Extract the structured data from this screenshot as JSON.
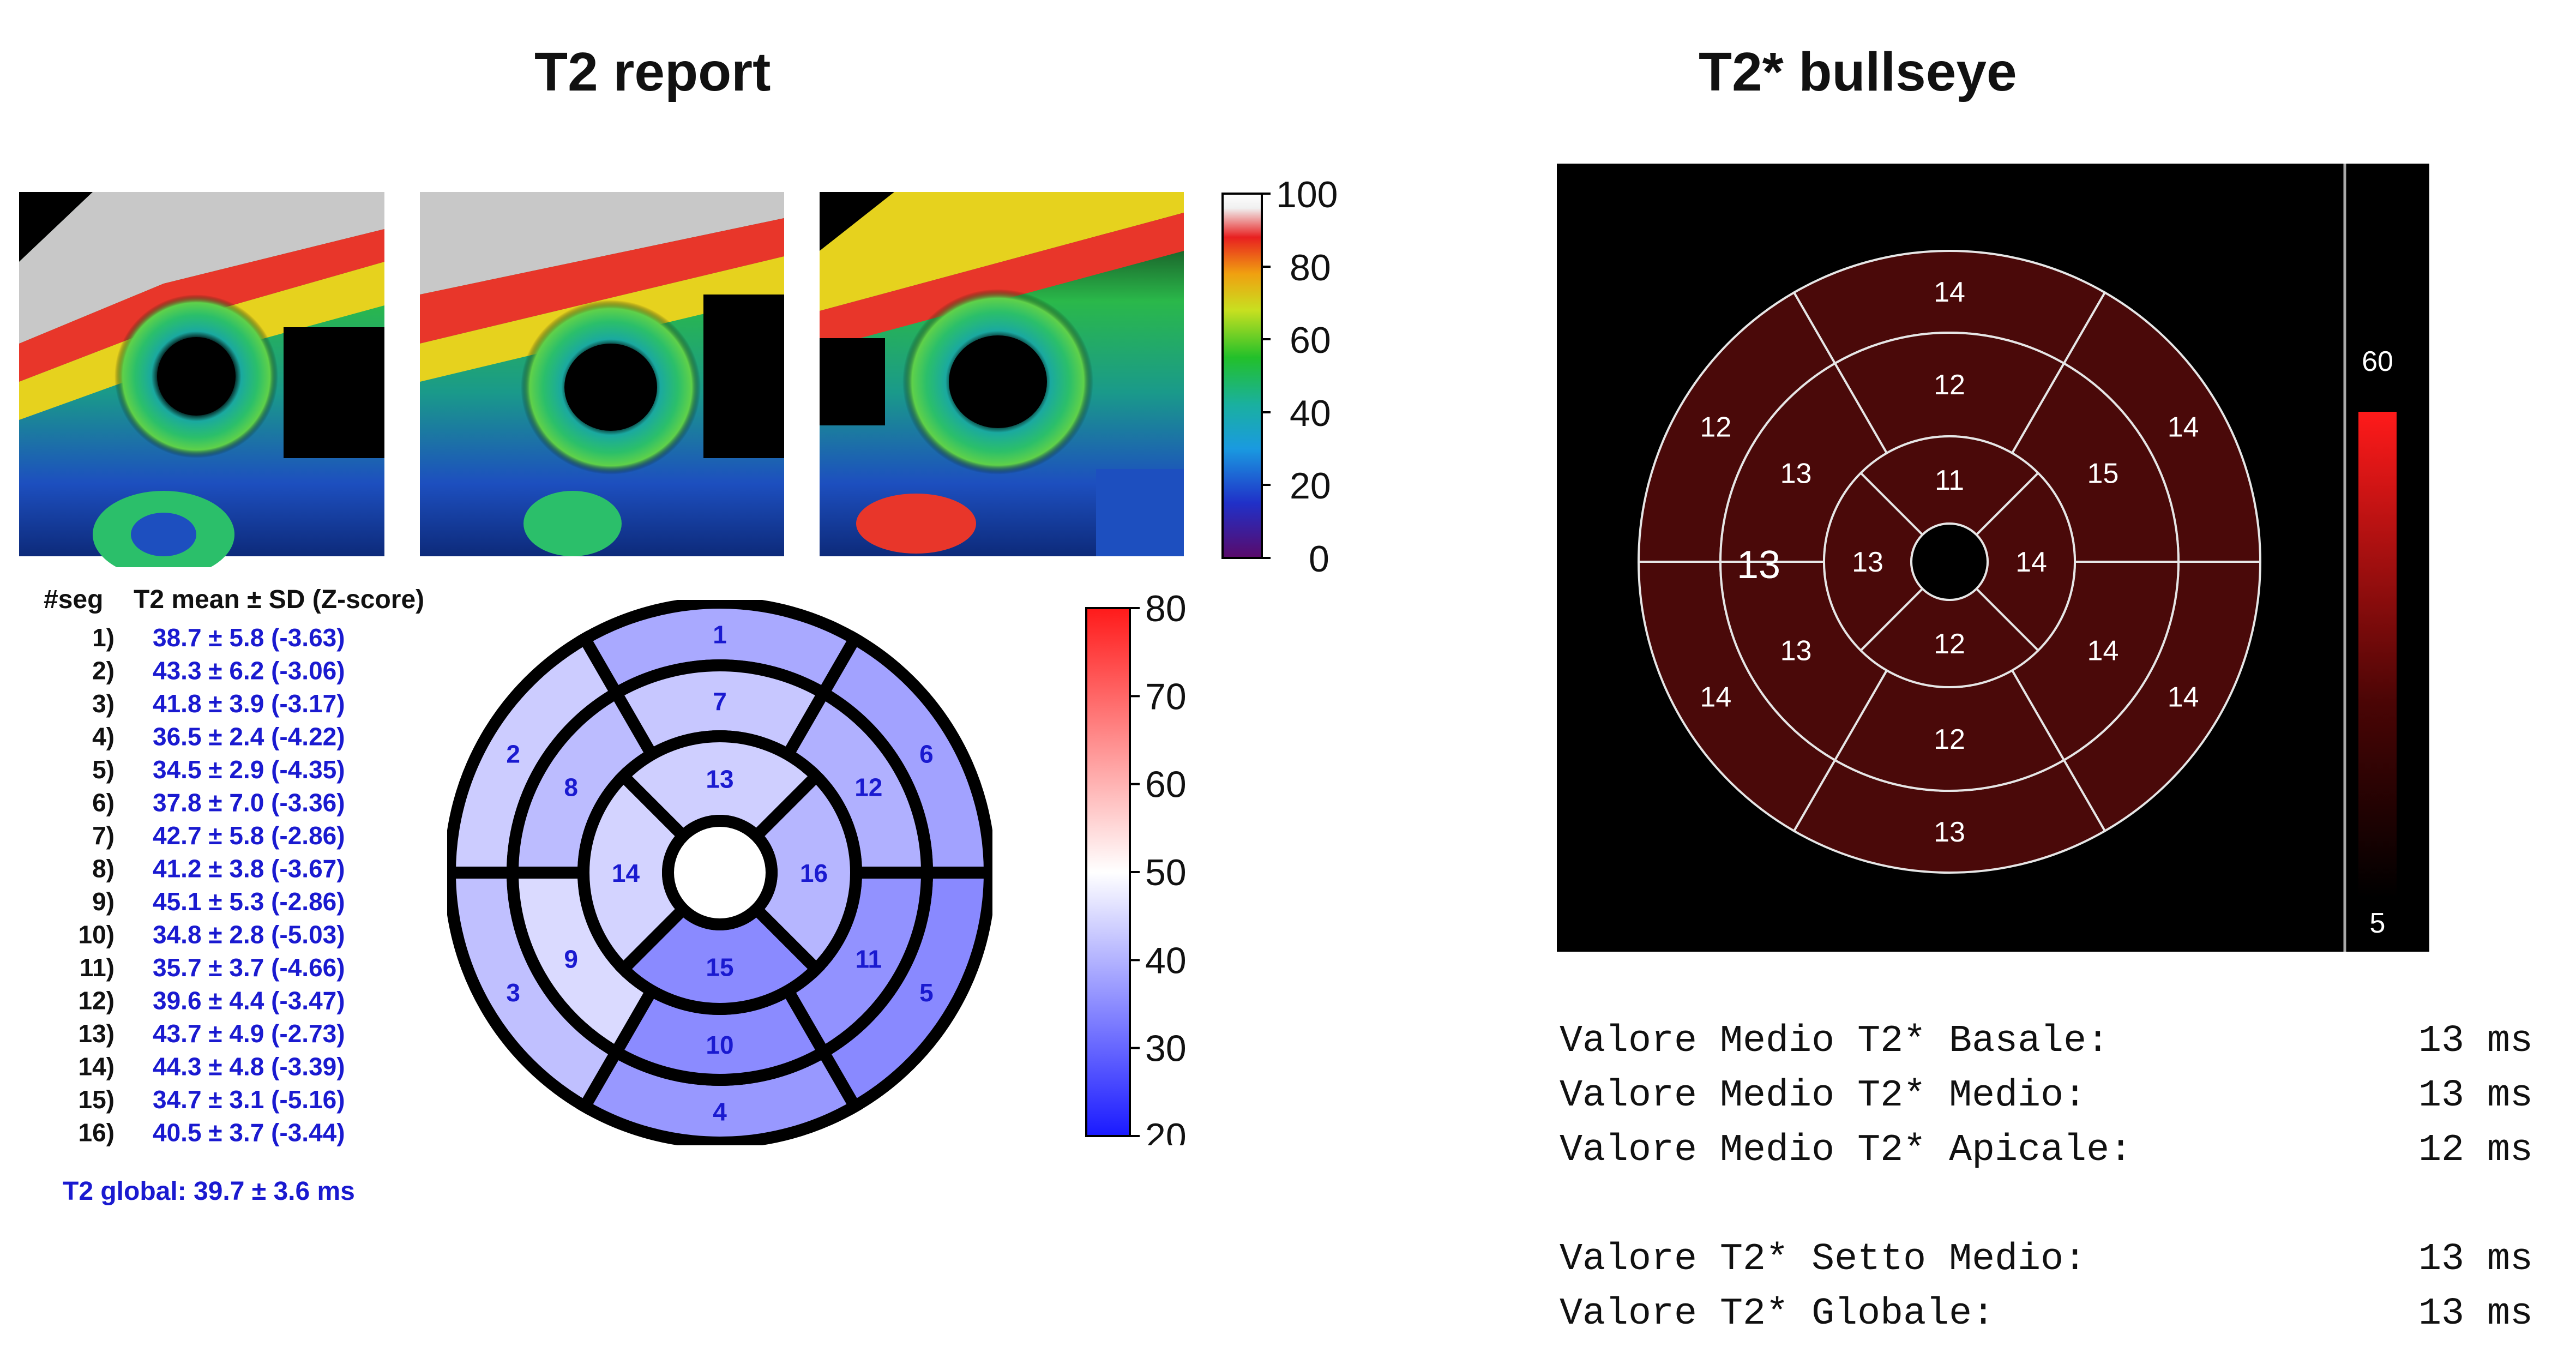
{
  "left": {
    "title": "T2 report",
    "map_colorbar": {
      "ticks": [
        "100",
        "80",
        "60",
        "40",
        "20",
        "0"
      ]
    },
    "table": {
      "header_seg": "#seg",
      "header_val": "T2 mean ± SD (Z-score)",
      "rows": [
        {
          "seg": "1)",
          "val": "38.7 ± 5.8 (-3.63)"
        },
        {
          "seg": "2)",
          "val": "43.3 ± 6.2 (-3.06)"
        },
        {
          "seg": "3)",
          "val": "41.8 ± 3.9 (-3.17)"
        },
        {
          "seg": "4)",
          "val": "36.5 ± 2.4 (-4.22)"
        },
        {
          "seg": "5)",
          "val": "34.5 ± 2.9 (-4.35)"
        },
        {
          "seg": "6)",
          "val": "37.8 ± 7.0 (-3.36)"
        },
        {
          "seg": "7)",
          "val": "42.7 ± 5.8 (-2.86)"
        },
        {
          "seg": "8)",
          "val": "41.2 ± 3.8 (-3.67)"
        },
        {
          "seg": "9)",
          "val": "45.1 ± 5.3 (-2.86)"
        },
        {
          "seg": "10)",
          "val": "34.8 ± 2.8 (-5.03)"
        },
        {
          "seg": "11)",
          "val": "35.7 ± 3.7 (-4.66)"
        },
        {
          "seg": "12)",
          "val": "39.6 ± 4.4 (-3.47)"
        },
        {
          "seg": "13)",
          "val": "43.7 ± 4.9 (-2.73)"
        },
        {
          "seg": "14)",
          "val": "44.3 ± 4.8 (-3.39)"
        },
        {
          "seg": "15)",
          "val": "34.7 ± 3.1 (-5.16)"
        },
        {
          "seg": "16)",
          "val": "40.5 ± 3.7 (-3.44)"
        }
      ],
      "global": "T2 global: 39.7 ± 3.6 ms"
    },
    "bullseye": {
      "segments": [
        "1",
        "2",
        "3",
        "4",
        "5",
        "6",
        "7",
        "8",
        "9",
        "10",
        "11",
        "12",
        "13",
        "14",
        "15",
        "16"
      ],
      "colorbar_ticks": [
        "80",
        "70",
        "60",
        "50",
        "40",
        "30",
        "20"
      ]
    }
  },
  "right": {
    "title": "T2* bullseye",
    "bullseye": {
      "outer": [
        "14",
        "14",
        "14",
        "13",
        "14",
        "12"
      ],
      "mid": [
        "12",
        "15",
        "14",
        "12",
        "13",
        "13"
      ],
      "apical": [
        "11",
        "14",
        "12",
        "13"
      ],
      "left_label": "13"
    },
    "colorbar": {
      "top": "60",
      "bottom": "5"
    },
    "summary": [
      {
        "label": "Valore Medio T2* Basale:",
        "value": "13 ms"
      },
      {
        "label": "Valore Medio T2* Medio:",
        "value": "13 ms"
      },
      {
        "label": "Valore Medio T2* Apicale:",
        "value": "12 ms"
      },
      {
        "label": "Valore T2* Setto Medio:",
        "value": "13 ms"
      },
      {
        "label": "Valore T2* Globale:",
        "value": "13 ms"
      }
    ]
  }
}
